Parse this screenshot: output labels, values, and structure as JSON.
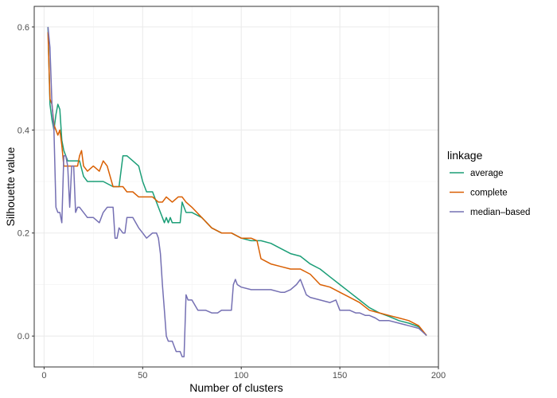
{
  "chart_data": {
    "type": "line",
    "xlabel": "Number of clusters",
    "ylabel": "Silhouette value",
    "xlim": [
      -5,
      200
    ],
    "ylim": [
      -0.06,
      0.64
    ],
    "x_ticks": [
      0,
      50,
      100,
      150,
      200
    ],
    "y_ticks": [
      0.0,
      0.2,
      0.4,
      0.6
    ],
    "x_tick_labels": [
      "0",
      "50",
      "100",
      "150",
      "200"
    ],
    "y_tick_labels": [
      "0.0",
      "0.2",
      "0.4",
      "0.6"
    ],
    "grid": true,
    "legend_title": "linkage",
    "legend_position": "right",
    "series": [
      {
        "name": "average",
        "color": "#1b9e77",
        "x": [
          2,
          3,
          4,
          5,
          6,
          7,
          8,
          9,
          10,
          12,
          15,
          18,
          20,
          22,
          25,
          30,
          35,
          38,
          40,
          42,
          45,
          48,
          50,
          52,
          55,
          58,
          60,
          61,
          62,
          63,
          64,
          65,
          66,
          67,
          68,
          69,
          70,
          71,
          72,
          75,
          80,
          85,
          90,
          95,
          100,
          105,
          110,
          115,
          120,
          125,
          130,
          135,
          140,
          145,
          150,
          155,
          160,
          165,
          170,
          175,
          180,
          185,
          190,
          194
        ],
        "y": [
          0.6,
          0.45,
          0.42,
          0.4,
          0.43,
          0.45,
          0.44,
          0.38,
          0.36,
          0.34,
          0.34,
          0.34,
          0.31,
          0.3,
          0.3,
          0.3,
          0.29,
          0.29,
          0.35,
          0.35,
          0.34,
          0.33,
          0.3,
          0.28,
          0.28,
          0.25,
          0.23,
          0.22,
          0.23,
          0.22,
          0.23,
          0.22,
          0.22,
          0.22,
          0.22,
          0.22,
          0.26,
          0.25,
          0.24,
          0.24,
          0.23,
          0.21,
          0.2,
          0.2,
          0.19,
          0.185,
          0.185,
          0.18,
          0.17,
          0.16,
          0.155,
          0.14,
          0.13,
          0.115,
          0.1,
          0.085,
          0.07,
          0.055,
          0.045,
          0.038,
          0.03,
          0.025,
          0.018,
          0.001
        ]
      },
      {
        "name": "complete",
        "color": "#d95f02",
        "x": [
          2,
          3,
          4,
          5,
          6,
          7,
          8,
          9,
          10,
          12,
          15,
          17,
          18,
          19,
          20,
          22,
          25,
          28,
          30,
          32,
          35,
          38,
          40,
          42,
          45,
          48,
          50,
          55,
          58,
          60,
          62,
          65,
          68,
          70,
          72,
          75,
          80,
          85,
          90,
          95,
          100,
          103,
          105,
          108,
          110,
          115,
          120,
          125,
          130,
          135,
          140,
          145,
          150,
          155,
          160,
          165,
          170,
          175,
          180,
          185,
          190,
          194
        ],
        "y": [
          0.59,
          0.46,
          0.45,
          0.41,
          0.4,
          0.39,
          0.4,
          0.37,
          0.33,
          0.33,
          0.33,
          0.33,
          0.35,
          0.36,
          0.33,
          0.32,
          0.33,
          0.32,
          0.34,
          0.33,
          0.29,
          0.29,
          0.29,
          0.28,
          0.28,
          0.27,
          0.27,
          0.27,
          0.26,
          0.26,
          0.27,
          0.26,
          0.27,
          0.27,
          0.26,
          0.25,
          0.23,
          0.21,
          0.2,
          0.2,
          0.19,
          0.19,
          0.19,
          0.185,
          0.15,
          0.14,
          0.135,
          0.13,
          0.13,
          0.12,
          0.1,
          0.095,
          0.085,
          0.075,
          0.065,
          0.05,
          0.045,
          0.04,
          0.035,
          0.03,
          0.02,
          0.001
        ]
      },
      {
        "name": "median–based",
        "color": "#7570b3",
        "x": [
          2,
          3,
          4,
          5,
          6,
          7,
          8,
          9,
          10,
          11,
          12,
          13,
          14,
          15,
          16,
          17,
          18,
          20,
          22,
          25,
          28,
          30,
          32,
          35,
          36,
          37,
          38,
          40,
          41,
          42,
          45,
          48,
          50,
          52,
          55,
          57,
          58,
          59,
          60,
          61,
          62,
          63,
          64,
          65,
          66,
          67,
          68,
          69,
          70,
          71,
          72,
          73,
          75,
          78,
          80,
          82,
          85,
          88,
          90,
          95,
          96,
          97,
          98,
          100,
          105,
          110,
          115,
          120,
          122,
          125,
          128,
          130,
          133,
          135,
          140,
          145,
          148,
          150,
          152,
          155,
          158,
          160,
          163,
          165,
          168,
          170,
          175,
          180,
          185,
          190,
          194
        ],
        "y": [
          0.6,
          0.56,
          0.45,
          0.4,
          0.25,
          0.24,
          0.24,
          0.22,
          0.35,
          0.35,
          0.33,
          0.25,
          0.33,
          0.33,
          0.24,
          0.25,
          0.25,
          0.24,
          0.23,
          0.23,
          0.22,
          0.24,
          0.25,
          0.25,
          0.19,
          0.19,
          0.21,
          0.2,
          0.2,
          0.23,
          0.23,
          0.21,
          0.2,
          0.19,
          0.2,
          0.2,
          0.19,
          0.16,
          0.1,
          0.05,
          0.0,
          -0.01,
          -0.01,
          -0.01,
          -0.02,
          -0.03,
          -0.03,
          -0.03,
          -0.04,
          -0.04,
          0.08,
          0.07,
          0.07,
          0.05,
          0.05,
          0.05,
          0.045,
          0.045,
          0.05,
          0.05,
          0.1,
          0.11,
          0.1,
          0.095,
          0.09,
          0.09,
          0.09,
          0.085,
          0.085,
          0.09,
          0.1,
          0.11,
          0.08,
          0.075,
          0.07,
          0.065,
          0.07,
          0.05,
          0.05,
          0.05,
          0.045,
          0.045,
          0.04,
          0.04,
          0.035,
          0.03,
          0.03,
          0.025,
          0.02,
          0.015,
          0.001
        ]
      }
    ]
  }
}
